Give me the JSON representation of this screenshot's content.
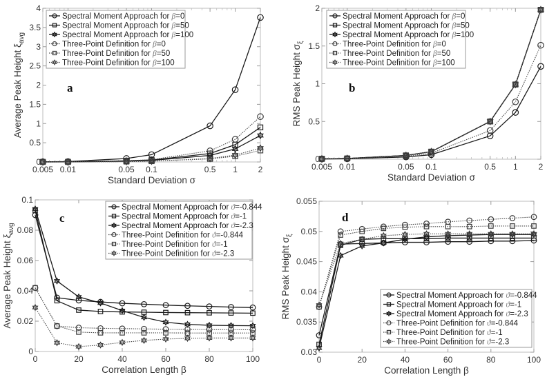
{
  "figure": {
    "panels": [
      "a",
      "b",
      "c",
      "d"
    ]
  },
  "chart_data": [
    {
      "id": "a",
      "type": "line",
      "panel_label": "a",
      "xscale": "log",
      "xlabel": "Standard Deviation σ",
      "ylabel": "Average Peak Height ξ",
      "ylabel_sub": "avg",
      "x": [
        0.005,
        0.01,
        0.05,
        0.1,
        0.5,
        1,
        2
      ],
      "xticks": [
        0.005,
        0.01,
        0.05,
        0.1,
        0.5,
        1,
        2
      ],
      "xtick_labels": [
        "0.005",
        "0.01",
        "0.05",
        "0.1",
        "0.5",
        "1",
        "2"
      ],
      "xlim": [
        0.005,
        2
      ],
      "ylim": [
        0,
        4
      ],
      "yticks": [
        0,
        0.5,
        1,
        1.5,
        2,
        2.5,
        3,
        3.5,
        4
      ],
      "ytick_labels": [
        "0",
        "0.5",
        "1",
        "1.5",
        "2",
        "2.5",
        "3",
        "3.5",
        "4"
      ],
      "grid": false,
      "legend_position": "top-left",
      "series": [
        {
          "name": "Spectral Moment Approach for β=0",
          "label_prefix": "Spectral Moment Approach for ",
          "label_sym": "β",
          "label_value": "=0",
          "style": "solid",
          "marker": "circle",
          "values": [
            0.005,
            0.01,
            0.09,
            0.19,
            0.94,
            1.88,
            3.76
          ]
        },
        {
          "name": "Spectral Moment Approach for β=50",
          "label_prefix": "Spectral Moment Approach for ",
          "label_sym": "β",
          "label_value": "=50",
          "style": "solid",
          "marker": "square",
          "values": [
            0.001,
            0.002,
            0.03,
            0.05,
            0.22,
            0.45,
            0.9
          ]
        },
        {
          "name": "Spectral Moment Approach for β=100",
          "label_prefix": "Spectral Moment Approach for ",
          "label_sym": "β",
          "label_value": "=100",
          "style": "solid",
          "marker": "star",
          "values": [
            0.001,
            0.002,
            0.02,
            0.04,
            0.17,
            0.34,
            0.69
          ]
        },
        {
          "name": "Three-Point Definition for β=0",
          "label_prefix": "Three-Point Definition for ",
          "label_sym": "β",
          "label_value": "=0",
          "style": "dotted",
          "marker": "circle",
          "values": [
            0.002,
            0.003,
            0.03,
            0.06,
            0.29,
            0.59,
            1.18
          ]
        },
        {
          "name": "Three-Point Definition for β=50",
          "label_prefix": "Three-Point Definition for ",
          "label_sym": "β",
          "label_value": "=50",
          "style": "dotted",
          "marker": "square",
          "values": [
            0.001,
            0.001,
            0.01,
            0.02,
            0.08,
            0.15,
            0.3
          ]
        },
        {
          "name": "Three-Point Definition for β=100",
          "label_prefix": "Three-Point Definition for ",
          "label_sym": "β",
          "label_value": "=100",
          "style": "dotted",
          "marker": "star",
          "values": [
            0.001,
            0.001,
            0.01,
            0.02,
            0.09,
            0.18,
            0.36
          ]
        }
      ]
    },
    {
      "id": "b",
      "type": "line",
      "panel_label": "b",
      "xscale": "log",
      "xlabel": "Standard Deviation σ",
      "ylabel": "RMS Peak Height σ",
      "ylabel_sub": "ξ",
      "x": [
        0.005,
        0.01,
        0.05,
        0.1,
        0.5,
        1,
        2
      ],
      "xticks": [
        0.005,
        0.01,
        0.05,
        0.1,
        0.5,
        1,
        2
      ],
      "xtick_labels": [
        "0.005",
        "0.01",
        "0.05",
        "0.1",
        "0.5",
        "1",
        "2"
      ],
      "xlim": [
        0.005,
        2
      ],
      "ylim": [
        0,
        2
      ],
      "yticks": [
        0,
        0.5,
        1,
        1.5,
        2
      ],
      "ytick_labels": [
        "0",
        "0.5",
        "1",
        "1.5",
        "2"
      ],
      "grid": false,
      "legend_position": "top-left",
      "series": [
        {
          "name": "Spectral Moment Approach for β=0",
          "label_prefix": "Spectral Moment Approach for ",
          "label_sym": "β",
          "label_value": "=0",
          "style": "solid",
          "marker": "circle",
          "values": [
            0.003,
            0.006,
            0.03,
            0.06,
            0.31,
            0.62,
            1.23
          ]
        },
        {
          "name": "Spectral Moment Approach for β=50",
          "label_prefix": "Spectral Moment Approach for ",
          "label_sym": "β",
          "label_value": "=50",
          "style": "solid",
          "marker": "square",
          "values": [
            0.005,
            0.01,
            0.05,
            0.1,
            0.5,
            0.99,
            1.98
          ]
        },
        {
          "name": "Spectral Moment Approach for β=100",
          "label_prefix": "Spectral Moment Approach for ",
          "label_sym": "β",
          "label_value": "=100",
          "style": "solid",
          "marker": "star",
          "values": [
            0.005,
            0.01,
            0.05,
            0.1,
            0.5,
            0.99,
            1.98
          ]
        },
        {
          "name": "Three-Point Definition for β=0",
          "label_prefix": "Three-Point Definition for ",
          "label_sym": "β",
          "label_value": "=0",
          "style": "dotted",
          "marker": "circle",
          "values": [
            0.004,
            0.008,
            0.04,
            0.08,
            0.38,
            0.76,
            1.51
          ]
        },
        {
          "name": "Three-Point Definition for β=50",
          "label_prefix": "Three-Point Definition for ",
          "label_sym": "β",
          "label_value": "=50",
          "style": "dotted",
          "marker": "square",
          "values": [
            0.005,
            0.01,
            0.05,
            0.1,
            0.5,
            0.99,
            1.98
          ]
        },
        {
          "name": "Three-Point Definition for β=100",
          "label_prefix": "Three-Point Definition for ",
          "label_sym": "β",
          "label_value": "=100",
          "style": "dotted",
          "marker": "star",
          "values": [
            0.005,
            0.01,
            0.05,
            0.1,
            0.5,
            0.99,
            1.98
          ]
        }
      ]
    },
    {
      "id": "c",
      "type": "line",
      "panel_label": "c",
      "xscale": "linear",
      "xlabel": "Correlation Length β",
      "ylabel": "Average Peak Height ξ",
      "ylabel_sub": "avg",
      "x": [
        0,
        10,
        20,
        30,
        40,
        50,
        60,
        70,
        80,
        90,
        100
      ],
      "xticks": [
        0,
        20,
        40,
        60,
        80,
        100
      ],
      "xtick_labels": [
        "0",
        "20",
        "40",
        "60",
        "80",
        "100"
      ],
      "xlim": [
        0,
        100
      ],
      "ylim": [
        0,
        0.1
      ],
      "yticks": [
        0,
        0.02,
        0.04,
        0.06,
        0.08,
        0.1
      ],
      "ytick_labels": [
        "0",
        "0.02",
        "0.04",
        "0.06",
        "0.08",
        "0.1"
      ],
      "grid": false,
      "legend_position": "top-right",
      "series": [
        {
          "name": "Spectral Moment Approach for ϑ=-0.844",
          "label_prefix": "Spectral Moment Approach for ",
          "label_sym": "ϑ",
          "label_value": "=-0.844",
          "style": "solid",
          "marker": "circle",
          "values": [
            0.09,
            0.0355,
            0.0337,
            0.0327,
            0.0318,
            0.0312,
            0.0306,
            0.0301,
            0.0297,
            0.0293,
            0.029
          ]
        },
        {
          "name": "Spectral Moment Approach for ϑ=-1",
          "label_prefix": "Spectral Moment Approach for ",
          "label_sym": "ϑ",
          "label_value": "=-1",
          "style": "solid",
          "marker": "square",
          "values": [
            0.093,
            0.0335,
            0.0273,
            0.0264,
            0.0261,
            0.0259,
            0.0257,
            0.0256,
            0.0255,
            0.0254,
            0.0253
          ]
        },
        {
          "name": "Spectral Moment Approach for ϑ=-2.3",
          "label_prefix": "Spectral Moment Approach for ",
          "label_sym": "ϑ",
          "label_value": "=-2.3",
          "style": "solid",
          "marker": "star",
          "values": [
            0.094,
            0.0465,
            0.036,
            0.032,
            0.027,
            0.0225,
            0.0193,
            0.0179,
            0.0173,
            0.0171,
            0.017
          ]
        },
        {
          "name": "Three-Point Definition for ϑ=-0.844",
          "label_prefix": "Three-Point Definition for ",
          "label_sym": "ϑ",
          "label_value": "=-0.844",
          "style": "dotted",
          "marker": "circle",
          "values": [
            0.042,
            0.0168,
            0.0157,
            0.0153,
            0.0151,
            0.0149,
            0.0147,
            0.0146,
            0.0145,
            0.0144,
            0.0143
          ]
        },
        {
          "name": "Three-Point Definition for ϑ=-1",
          "label_prefix": "Three-Point Definition for ",
          "label_sym": "ϑ",
          "label_value": "=-1",
          "style": "dotted",
          "marker": "square",
          "values": [
            0.042,
            0.0168,
            0.0128,
            0.0123,
            0.0123,
            0.0123,
            0.0123,
            0.0122,
            0.0122,
            0.0122,
            0.0122
          ]
        },
        {
          "name": "Three-Point Definition for ϑ=-2.3",
          "label_prefix": "Three-Point Definition for ",
          "label_sym": "ϑ",
          "label_value": "=-2.3",
          "style": "dotted",
          "marker": "star",
          "values": [
            0.029,
            0.0058,
            0.0032,
            0.0043,
            0.006,
            0.0073,
            0.0082,
            0.0087,
            0.0089,
            0.0089,
            0.0089
          ]
        }
      ]
    },
    {
      "id": "d",
      "type": "line",
      "panel_label": "d",
      "xscale": "linear",
      "xlabel": "Correlation Length β",
      "ylabel": "RMS Peak Height σ",
      "ylabel_sub": "ξ",
      "x": [
        0,
        10,
        20,
        30,
        40,
        50,
        60,
        70,
        80,
        90,
        100
      ],
      "xticks": [
        0,
        20,
        40,
        60,
        80,
        100
      ],
      "xtick_labels": [
        "0",
        "20",
        "40",
        "60",
        "80",
        "100"
      ],
      "xlim": [
        0,
        100
      ],
      "ylim": [
        0.03,
        0.055
      ],
      "yticks": [
        0.03,
        0.035,
        0.04,
        0.045,
        0.05,
        0.055
      ],
      "ytick_labels": [
        "0.03",
        "0.035",
        "0.04",
        "0.045",
        "0.05",
        "0.055"
      ],
      "grid": false,
      "legend_position": "bottom-right",
      "series": [
        {
          "name": "Spectral Moment Approach for ϑ=-0.844",
          "label_prefix": "Spectral Moment Approach for ",
          "label_sym": "ϑ",
          "label_value": "=-0.844",
          "style": "solid",
          "marker": "circle",
          "values": [
            0.0328,
            0.0479,
            0.048,
            0.0481,
            0.0482,
            0.0482,
            0.0483,
            0.0483,
            0.0484,
            0.0484,
            0.0485
          ]
        },
        {
          "name": "Spectral Moment Approach for ϑ=-1",
          "label_prefix": "Spectral Moment Approach for ",
          "label_sym": "ϑ",
          "label_value": "=-1",
          "style": "solid",
          "marker": "square",
          "values": [
            0.0313,
            0.0477,
            0.0487,
            0.0488,
            0.0488,
            0.0488,
            0.0489,
            0.0489,
            0.0489,
            0.0489,
            0.0489
          ]
        },
        {
          "name": "Spectral Moment Approach for ϑ=-2.3",
          "label_prefix": "Spectral Moment Approach for ",
          "label_sym": "ϑ",
          "label_value": "=-2.3",
          "style": "solid",
          "marker": "star",
          "values": [
            0.0307,
            0.046,
            0.0476,
            0.0481,
            0.0487,
            0.0491,
            0.0493,
            0.0494,
            0.0495,
            0.0495,
            0.0495
          ]
        },
        {
          "name": "Three-Point Definition for ϑ=-0.844",
          "label_prefix": "Three-Point Definition for ",
          "label_sym": "ϑ",
          "label_value": "=-0.844",
          "style": "dotted",
          "marker": "circle",
          "values": [
            0.0375,
            0.05,
            0.0504,
            0.0508,
            0.0511,
            0.0513,
            0.0516,
            0.0518,
            0.052,
            0.0522,
            0.0524
          ]
        },
        {
          "name": "Three-Point Definition for ϑ=-1",
          "label_prefix": "Three-Point Definition for ",
          "label_sym": "ϑ",
          "label_value": "=-1",
          "style": "dotted",
          "marker": "square",
          "values": [
            0.0375,
            0.0494,
            0.05,
            0.0505,
            0.0507,
            0.0508,
            0.0508,
            0.0508,
            0.0509,
            0.0509,
            0.0509
          ]
        },
        {
          "name": "Three-Point Definition for ϑ=-2.3",
          "label_prefix": "Three-Point Definition for ",
          "label_sym": "ϑ",
          "label_value": "=-2.3",
          "style": "dotted",
          "marker": "star",
          "values": [
            0.0378,
            0.048,
            0.0487,
            0.0493,
            0.0495,
            0.0496,
            0.0496,
            0.0496,
            0.0496,
            0.0496,
            0.0496
          ]
        }
      ]
    }
  ]
}
